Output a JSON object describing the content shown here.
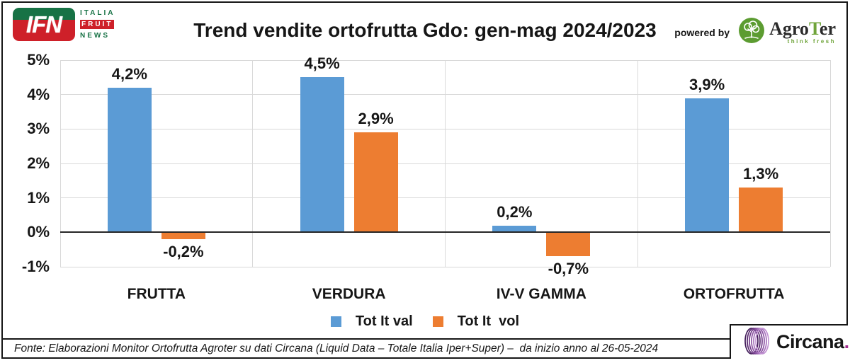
{
  "header": {
    "logo_ifn": {
      "abbr": "IFN",
      "line1": "ITALIA",
      "line2": "FRUIT",
      "line3": "NEWS"
    },
    "title": "Trend vendite ortofrutta Gdo: gen-mag 2024/2023",
    "powered_by": "powered by",
    "agroter_name_part1": "Agro",
    "agroter_name_part2": "T",
    "agroter_name_part3": "er",
    "agroter_tagline": "think fresh"
  },
  "chart_data": {
    "type": "bar",
    "title": "Trend vendite ortofrutta Gdo: gen-mag 2024/2023",
    "categories": [
      "FRUTTA",
      "VERDURA",
      "IV-V GAMMA",
      "ORTOFRUTTA"
    ],
    "series": [
      {
        "name": "Tot It val",
        "color": "#5B9BD5",
        "values": [
          4.2,
          4.5,
          0.2,
          3.9
        ],
        "labels": [
          "4,2%",
          "4,5%",
          "0,2%",
          "3,9%"
        ]
      },
      {
        "name": "Tot It  vol",
        "color": "#ED7D31",
        "values": [
          -0.2,
          2.9,
          -0.7,
          1.3
        ],
        "labels": [
          "-0,2%",
          "2,9%",
          "-0,7%",
          "1,3%"
        ]
      }
    ],
    "y_ticks": [
      "5%",
      "4%",
      "3%",
      "2%",
      "1%",
      "0%",
      "-1%"
    ],
    "y_max": 5,
    "y_min": -1,
    "grid": true,
    "legend_position": "bottom"
  },
  "footer": {
    "source": "Fonte: Elaborazioni Monitor Ortofrutta Agroter su dati Circana (Liquid Data – Totale Italia Iper+Super) –  da inizio anno al 26-05-2024",
    "circana_name": "Circana",
    "circana_dot": "."
  },
  "colors": {
    "series_val_blue": "#5B9BD5",
    "series_vol_orange": "#ED7D31",
    "ifn_green": "#177245",
    "ifn_red": "#CE2029",
    "agroter_green": "#6FA43A",
    "circana_purple": "#A22C8F",
    "gridline": "#D9D9D9",
    "axis_line": "#262626"
  }
}
